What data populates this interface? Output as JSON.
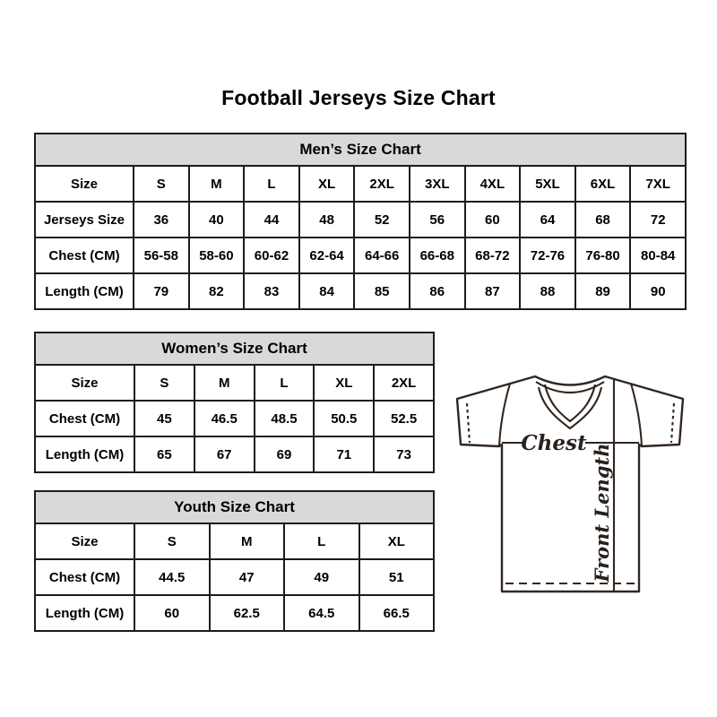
{
  "title": "Football Jerseys Size Chart",
  "colors": {
    "header_bg": "#d9d9d9",
    "table_border": "#1c1c1c",
    "text": "#000000",
    "jersey_line": "#33261f"
  },
  "chart_data": [
    {
      "type": "table",
      "title": "Men’s Size Chart",
      "header": [
        "Size",
        "S",
        "M",
        "L",
        "XL",
        "2XL",
        "3XL",
        "4XL",
        "5XL",
        "6XL",
        "7XL"
      ],
      "rows": [
        {
          "label": "Jerseys Size",
          "values": [
            "36",
            "40",
            "44",
            "48",
            "52",
            "56",
            "60",
            "64",
            "68",
            "72"
          ]
        },
        {
          "label": "Chest (CM)",
          "values": [
            "56-58",
            "58-60",
            "60-62",
            "62-64",
            "64-66",
            "66-68",
            "68-72",
            "72-76",
            "76-80",
            "80-84"
          ]
        },
        {
          "label": "Length (CM)",
          "values": [
            "79",
            "82",
            "83",
            "84",
            "85",
            "86",
            "87",
            "88",
            "89",
            "90"
          ]
        }
      ]
    },
    {
      "type": "table",
      "title": "Women’s Size Chart",
      "header": [
        "Size",
        "S",
        "M",
        "L",
        "XL",
        "2XL"
      ],
      "rows": [
        {
          "label": "Chest (CM)",
          "values": [
            "45",
            "46.5",
            "48.5",
            "50.5",
            "52.5"
          ]
        },
        {
          "label": "Length (CM)",
          "values": [
            "65",
            "67",
            "69",
            "71",
            "73"
          ]
        }
      ]
    },
    {
      "type": "table",
      "title": "Youth Size Chart",
      "header": [
        "Size",
        "S",
        "M",
        "L",
        "XL"
      ],
      "rows": [
        {
          "label": "Chest (CM)",
          "values": [
            "44.5",
            "47",
            "49",
            "51"
          ]
        },
        {
          "label": "Length (CM)",
          "values": [
            "60",
            "62.5",
            "64.5",
            "66.5"
          ]
        }
      ]
    }
  ],
  "diagram": {
    "chest_label": "Chest",
    "front_length_label": "Front Length"
  }
}
